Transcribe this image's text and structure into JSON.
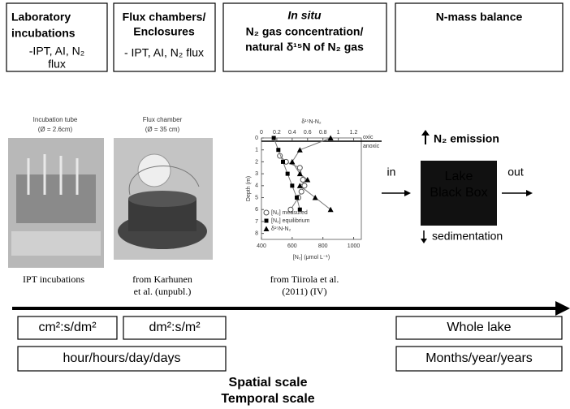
{
  "top_boxes": [
    {
      "title": [
        "Laboratory",
        "incubations"
      ],
      "detail": [
        "-IPT, AI, N₂",
        "flux"
      ]
    },
    {
      "title": [
        "Flux chambers/",
        "Enclosures"
      ],
      "detail": [
        "- IPT, AI, N₂ flux"
      ]
    },
    {
      "title": [
        "In situ",
        "N₂ gas concentration/",
        "natural δ¹⁵N of N₂ gas"
      ]
    },
    {
      "title": [
        "N-mass balance"
      ]
    }
  ],
  "photos": [
    {
      "label": "Incubation tube",
      "size": "(Ø = 2.6cm)",
      "caption": [
        "IPT incubations"
      ]
    },
    {
      "label": "Flux chamber",
      "size": "(Ø = 35 cm)",
      "caption": [
        "from Karhunen",
        "et al. (unpubl.)"
      ]
    }
  ],
  "profile": {
    "type": "line",
    "x2label": "δ¹⁵N-N₂",
    "xlabel": "[N₂] (μmol L⁻¹)",
    "ylabel": "Depth (m)",
    "xlim": [
      400,
      1050
    ],
    "xticks": [
      400,
      600,
      800,
      1000
    ],
    "x2lim": [
      0,
      1.3
    ],
    "x2ticks": [
      0,
      0.2,
      0.4,
      0.6,
      0.8,
      1,
      1.2
    ],
    "ylim": [
      0,
      8.5
    ],
    "yticks": [
      0,
      1,
      2,
      3,
      4,
      5,
      6,
      7,
      8
    ],
    "y_inverted": true,
    "annotations": [
      "oxic",
      "anoxic"
    ],
    "series": [
      {
        "name": "[N₂] measured",
        "marker": "circle-open",
        "x": [
          520,
          560,
          650,
          670,
          680,
          660,
          640,
          590
        ],
        "y": [
          1.5,
          2,
          2.5,
          3.5,
          4,
          4.5,
          5,
          6
        ]
      },
      {
        "name": "[N₂] equilibrium",
        "marker": "square",
        "x": [
          480,
          510,
          540,
          570,
          600,
          630,
          650
        ],
        "y": [
          0,
          1,
          2,
          3,
          4,
          5,
          6
        ]
      },
      {
        "name": "δ¹⁵N-N₂",
        "marker": "triangle",
        "axis": "x2",
        "x": [
          0.9,
          0.5,
          0.4,
          0.5,
          0.6,
          0.5,
          0.7,
          0.9
        ],
        "y": [
          0,
          1,
          2,
          3,
          3.5,
          4,
          5,
          6
        ]
      }
    ],
    "caption": [
      "from Tiirola et al.",
      "(2011) (IV)"
    ]
  },
  "black_box": {
    "label": [
      "Lake",
      "Black Box"
    ],
    "emission": "N₂ emission",
    "in": "in",
    "out": "out",
    "sedimentation": "sedimentation"
  },
  "scales": {
    "spatial": [
      "cm²:s/dm²",
      "dm²:s/m²",
      "Whole lake"
    ],
    "temporal": [
      "hour/hours/day/days",
      "Months/year/years"
    ],
    "labels": [
      "Spatial scale",
      "Temporal scale"
    ]
  }
}
